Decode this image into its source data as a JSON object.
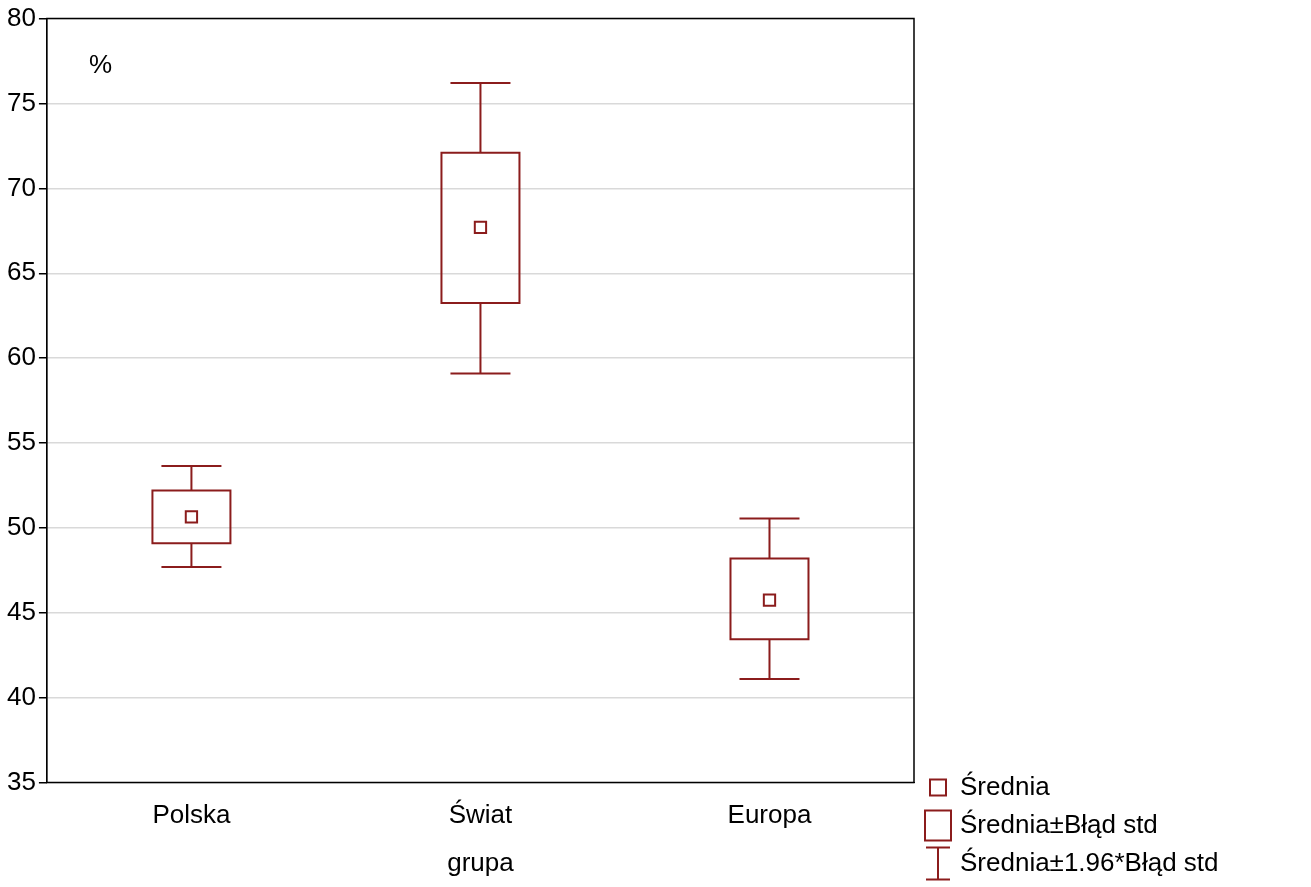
{
  "chart_data": {
    "type": "box",
    "xlabel": "grupa",
    "ylabel": "%",
    "categories": [
      "Polska",
      "Świat",
      "Europa"
    ],
    "series": [
      {
        "name": "Średnia",
        "type": "scatter",
        "marker": "square",
        "color": "#8b1c1c",
        "values": [
          50.65,
          67.7,
          45.75
        ]
      },
      {
        "name": "Średnia±Błąd std",
        "color": "#8b1c1c",
        "boxes": [
          {
            "low": 47.7,
            "q1": 49.1,
            "q3": 52.2,
            "high": 53.65
          },
          {
            "low": 59.1,
            "q1": 63.25,
            "q3": 72.1,
            "high": 76.2
          },
          {
            "low": 41.1,
            "q1": 43.45,
            "q3": 48.2,
            "high": 50.55
          }
        ]
      }
    ],
    "annotations": [
      "Średnia±1.96*Błąd std"
    ],
    "ylim": [
      35,
      80
    ],
    "yticks": [
      35,
      40,
      45,
      50,
      55,
      60,
      65,
      70,
      75,
      80
    ],
    "grid": "y",
    "legend": "bottom right"
  }
}
